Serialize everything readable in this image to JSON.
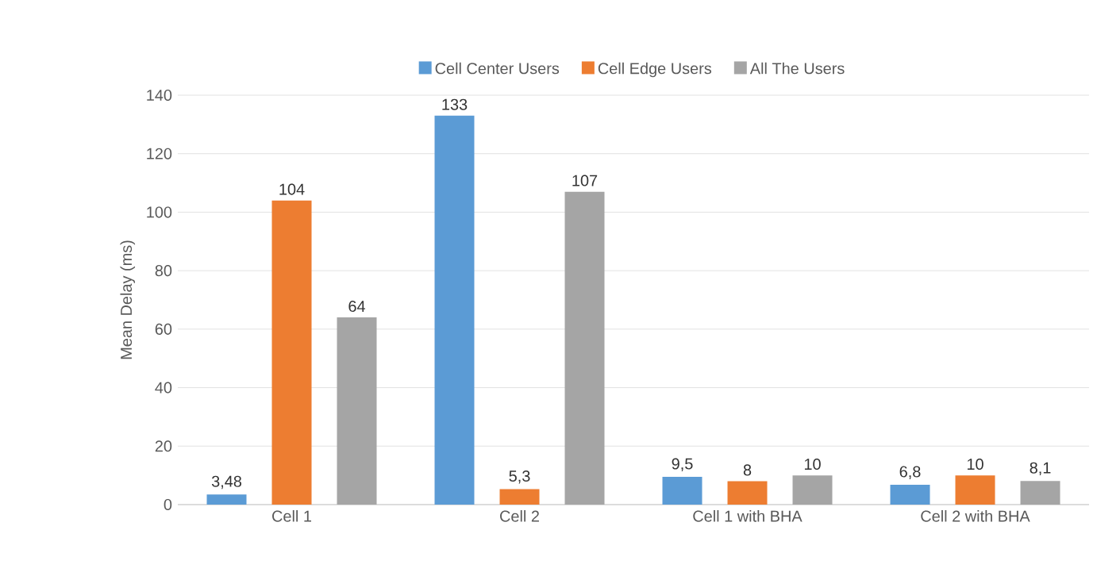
{
  "chart_data": {
    "type": "bar",
    "ylabel": "Mean Delay (ms)",
    "categories": [
      "Cell 1",
      "Cell 2",
      "Cell 1 with BHA",
      "Cell 2 with BHA"
    ],
    "series": [
      {
        "name": "Cell Center Users",
        "color": "#5b9bd5",
        "values": [
          3.48,
          133,
          9.5,
          6.8
        ],
        "value_labels": [
          "3,48",
          "133",
          "9,5",
          "6,8"
        ]
      },
      {
        "name": "Cell Edge Users",
        "color": "#ed7d31",
        "values": [
          104,
          5.3,
          8,
          10
        ],
        "value_labels": [
          "104",
          "5,3",
          "8",
          "10"
        ]
      },
      {
        "name": "All The Users",
        "color": "#a5a5a5",
        "values": [
          64,
          107,
          10,
          8.1
        ],
        "value_labels": [
          "64",
          "107",
          "10",
          "8,1"
        ]
      }
    ],
    "ylim": [
      0,
      140
    ],
    "yticks": [
      0,
      20,
      40,
      60,
      80,
      100,
      120,
      140
    ],
    "grid": "y",
    "legend": "top"
  }
}
